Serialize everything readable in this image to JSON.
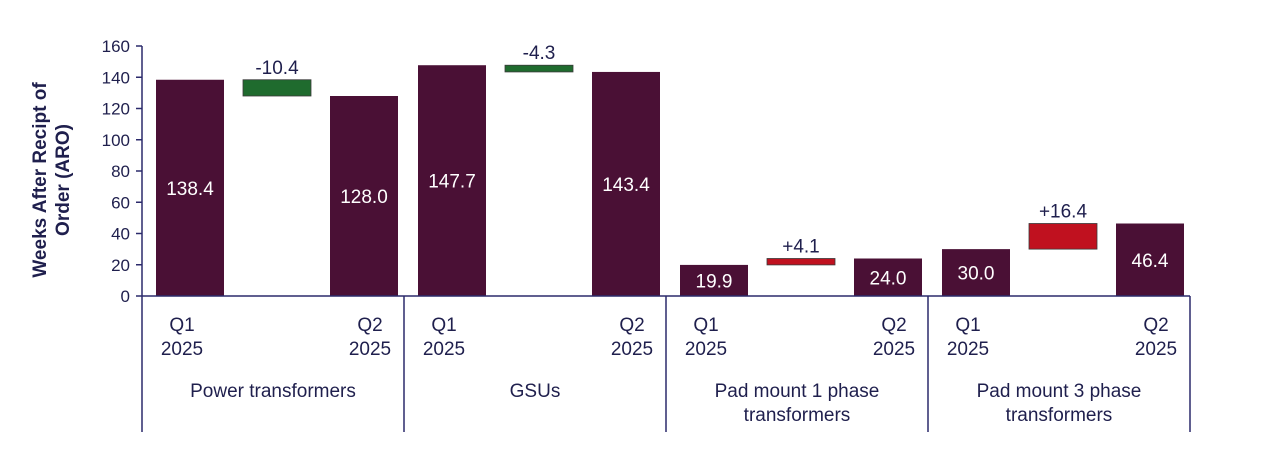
{
  "chart_data": {
    "type": "bar",
    "subtype": "waterfall",
    "ylabel": "Weeks After Recipt of Order (ARO)",
    "ylim": [
      0,
      160
    ],
    "yticks": [
      0,
      20,
      40,
      60,
      80,
      100,
      120,
      140,
      160
    ],
    "grid": false,
    "legend": "none",
    "colors": {
      "bar": "#4a1035",
      "decrease": "#1f6b2e",
      "increase": "#c0111f",
      "axis": "#2b2a6b",
      "text": "#1f1f4d",
      "bar_label": "#ffffff"
    },
    "groups": [
      {
        "name": "Power transformers",
        "q1": {
          "label": [
            "Q1",
            "2025"
          ],
          "value": 138.4,
          "text": "138.4"
        },
        "change": {
          "value": -10.4,
          "text": "-10.4"
        },
        "q2": {
          "label": [
            "Q2",
            "2025"
          ],
          "value": 128.0,
          "text": "128.0"
        }
      },
      {
        "name": "GSUs",
        "q1": {
          "label": [
            "Q1",
            "2025"
          ],
          "value": 147.7,
          "text": "147.7"
        },
        "change": {
          "value": -4.3,
          "text": "-4.3"
        },
        "q2": {
          "label": [
            "Q2",
            "2025"
          ],
          "value": 143.4,
          "text": "143.4"
        }
      },
      {
        "name": "Pad mount 1 phase transformers",
        "q1": {
          "label": [
            "Q1",
            "2025"
          ],
          "value": 19.9,
          "text": "19.9"
        },
        "change": {
          "value": 4.1,
          "text": "+4.1"
        },
        "q2": {
          "label": [
            "Q2",
            "2025"
          ],
          "value": 24.0,
          "text": "24.0"
        }
      },
      {
        "name": "Pad mount 3 phase transformers",
        "q1": {
          "label": [
            "Q1",
            "2025"
          ],
          "value": 30.0,
          "text": "30.0"
        },
        "change": {
          "value": 16.4,
          "text": "+16.4"
        },
        "q2": {
          "label": [
            "Q2",
            "2025"
          ],
          "value": 46.4,
          "text": "46.4"
        }
      }
    ]
  }
}
